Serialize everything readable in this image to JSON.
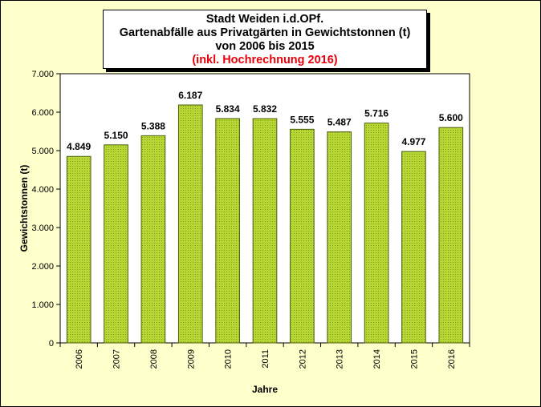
{
  "title": {
    "line1": "Stadt Weiden i.d.OPf.",
    "line2": "Gartenabfälle aus Privatgärten in Gewichtstonnen (t)",
    "line3": "von 2006 bis 2015",
    "line4": "(inkl. Hochrechnung 2016)"
  },
  "colors": {
    "bar_fill": "#b8d634",
    "bar_stroke": "#4a5f0a",
    "plot_bg": "#ffffff",
    "highlight_label": "#e8000b"
  },
  "chart_data": {
    "type": "bar",
    "categories": [
      "2006",
      "2007",
      "2008",
      "2009",
      "2010",
      "2011",
      "2012",
      "2013",
      "2014",
      "2015",
      "2016"
    ],
    "values": [
      4849,
      5150,
      5388,
      6187,
      5834,
      5832,
      5555,
      5487,
      5716,
      4977,
      5600
    ],
    "value_labels": [
      "4.849",
      "5.150",
      "5.388",
      "6.187",
      "5.834",
      "5.832",
      "5.555",
      "5.487",
      "5.716",
      "4.977",
      "5.600"
    ],
    "highlight_index": 10,
    "xlabel": "Jahre",
    "ylabel": "Gewichtstonnen (t)",
    "ylim": [
      0,
      7000
    ],
    "yticks": [
      0,
      1000,
      2000,
      3000,
      4000,
      5000,
      6000,
      7000
    ],
    "ytick_labels": [
      "0",
      "1.000",
      "2.000",
      "3.000",
      "4.000",
      "5.000",
      "6.000",
      "7.000"
    ],
    "grid": false,
    "legend": "none"
  }
}
